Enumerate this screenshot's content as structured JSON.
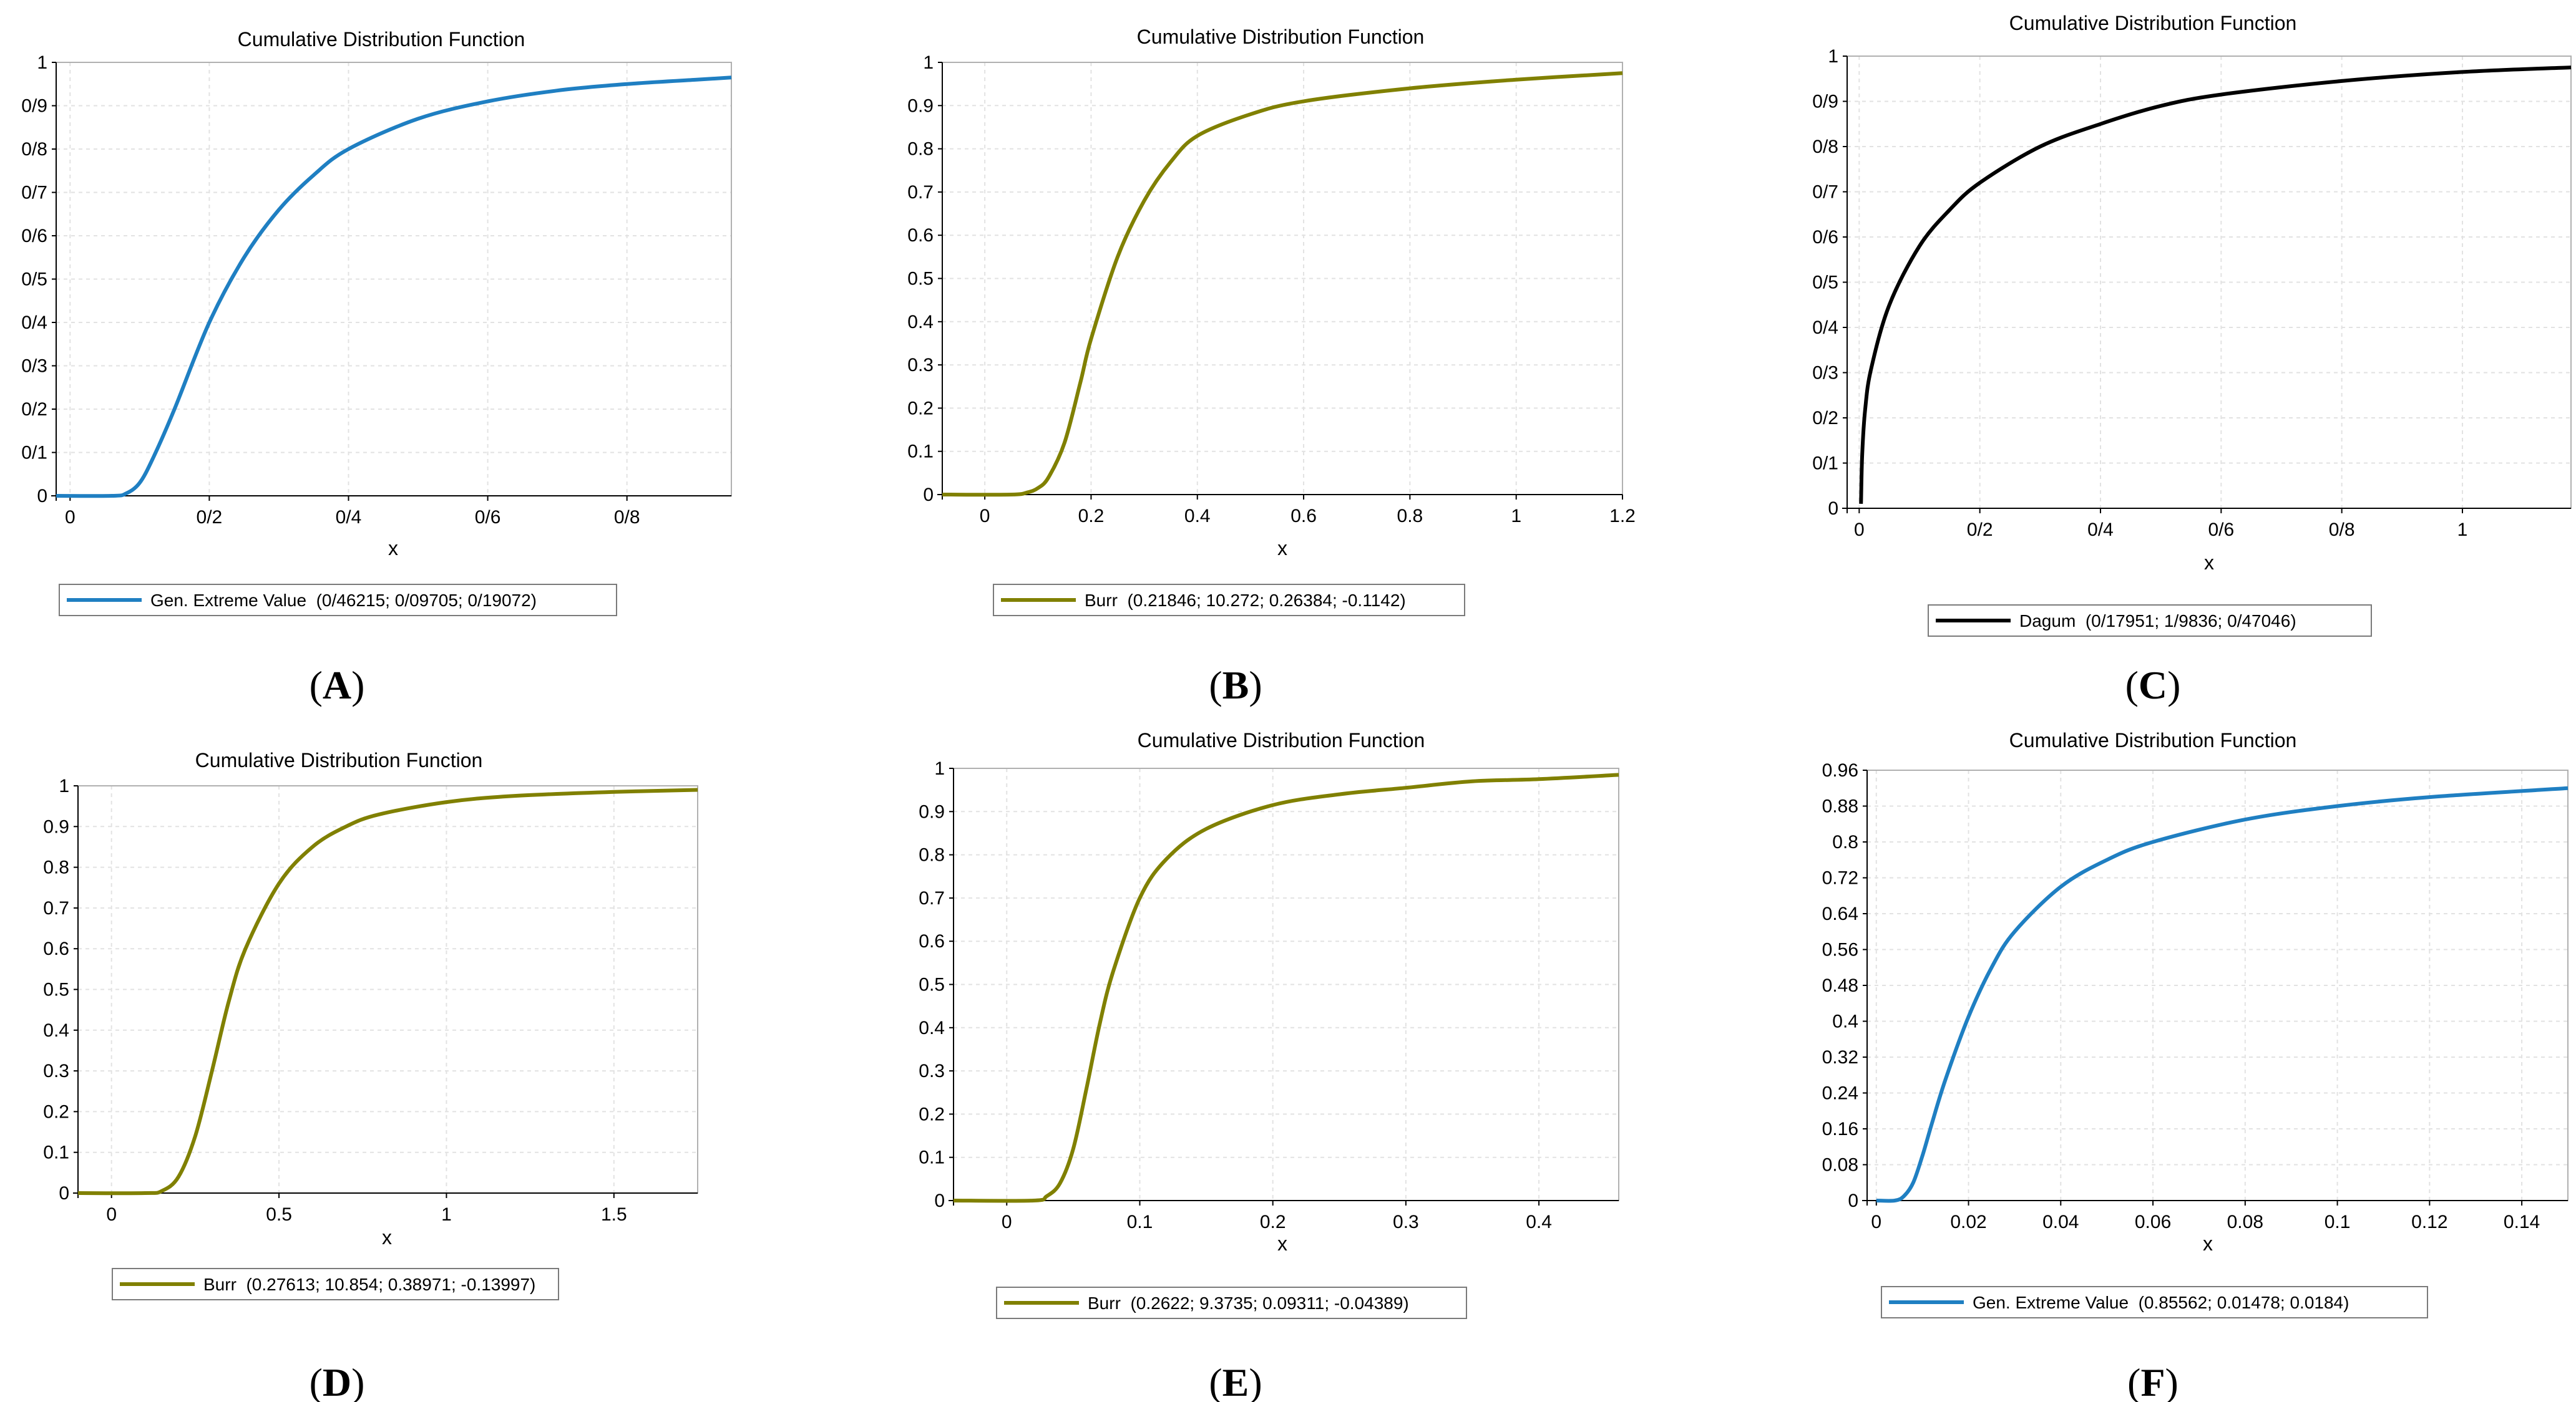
{
  "figure": {
    "panels": [
      {
        "letter": "A"
      },
      {
        "letter": "B"
      },
      {
        "letter": "C"
      },
      {
        "letter": "D"
      },
      {
        "letter": "E"
      },
      {
        "letter": "F"
      }
    ]
  },
  "chart_data": [
    {
      "type": "line",
      "title": "Cumulative Distribution Function",
      "xlabel": "x",
      "ylabel": "",
      "xlim": [
        -0.02,
        0.95
      ],
      "ylim": [
        0,
        1
      ],
      "xticks": [
        0,
        0.2,
        0.4,
        0.6,
        0.8
      ],
      "xtick_labels": [
        "0",
        "0/2",
        "0/4",
        "0/6",
        "0/8"
      ],
      "yticks": [
        0,
        0.1,
        0.2,
        0.3,
        0.4,
        0.5,
        0.6,
        0.7,
        0.8,
        0.9,
        1
      ],
      "ytick_labels": [
        "0",
        "0/1",
        "0/2",
        "0/3",
        "0/4",
        "0/5",
        "0/6",
        "0/7",
        "0/8",
        "0/9",
        "1"
      ],
      "color": "#1f7fc2",
      "legend": "Gen. Extreme Value  (0/46215; 0/09705; 0/19072)",
      "series": [
        {
          "name": "Gen. Extreme Value",
          "x": [
            -0.02,
            0.06,
            0.08,
            0.1,
            0.12,
            0.15,
            0.2,
            0.25,
            0.3,
            0.35,
            0.4,
            0.5,
            0.6,
            0.7,
            0.8,
            0.9,
            0.95
          ],
          "y": [
            0,
            0,
            0.005,
            0.03,
            0.09,
            0.2,
            0.4,
            0.55,
            0.66,
            0.74,
            0.8,
            0.87,
            0.91,
            0.935,
            0.95,
            0.96,
            0.965
          ]
        }
      ]
    },
    {
      "type": "line",
      "title": "Cumulative Distribution Function",
      "xlabel": "x",
      "ylabel": "",
      "xlim": [
        -0.08,
        1.2
      ],
      "ylim": [
        0,
        1
      ],
      "xticks": [
        0,
        0.2,
        0.4,
        0.6,
        0.8,
        1,
        1.2
      ],
      "xtick_labels": [
        "0",
        "0.2",
        "0.4",
        "0.6",
        "0.8",
        "1",
        "1.2"
      ],
      "yticks": [
        0,
        0.1,
        0.2,
        0.3,
        0.4,
        0.5,
        0.6,
        0.7,
        0.8,
        0.9,
        1
      ],
      "ytick_labels": [
        "0",
        "0.1",
        "0.2",
        "0.3",
        "0.4",
        "0.5",
        "0.6",
        "0.7",
        "0.8",
        "0.9",
        "1"
      ],
      "color": "#808000",
      "legend": "Burr  (0.21846; 10.272; 0.26384; -0.1142)",
      "series": [
        {
          "name": "Burr",
          "x": [
            -0.08,
            0.05,
            0.08,
            0.1,
            0.12,
            0.15,
            0.18,
            0.2,
            0.25,
            0.3,
            0.35,
            0.4,
            0.5,
            0.6,
            0.8,
            1.0,
            1.2
          ],
          "y": [
            0,
            0,
            0.005,
            0.015,
            0.04,
            0.12,
            0.26,
            0.36,
            0.55,
            0.68,
            0.77,
            0.83,
            0.88,
            0.91,
            0.94,
            0.96,
            0.975
          ]
        }
      ]
    },
    {
      "type": "line",
      "title": "Cumulative Distribution Function",
      "xlabel": "x",
      "ylabel": "",
      "xlim": [
        -0.02,
        1.18
      ],
      "ylim": [
        0,
        1
      ],
      "xticks": [
        0,
        0.2,
        0.4,
        0.6,
        0.8,
        1
      ],
      "xtick_labels": [
        "0",
        "0/2",
        "0/4",
        "0/6",
        "0/8",
        "1"
      ],
      "yticks": [
        0,
        0.1,
        0.2,
        0.3,
        0.4,
        0.5,
        0.6,
        0.7,
        0.8,
        0.9,
        1
      ],
      "ytick_labels": [
        "0",
        "0/1",
        "0/2",
        "0/3",
        "0/4",
        "0/5",
        "0/6",
        "0/7",
        "0/8",
        "0/9",
        "1"
      ],
      "color": "#000000",
      "legend": "Dagum  (0/17951; 1/9836; 0/47046)",
      "series": [
        {
          "name": "Dagum",
          "x": [
            0.003,
            0.005,
            0.01,
            0.02,
            0.05,
            0.1,
            0.15,
            0.2,
            0.3,
            0.4,
            0.5,
            0.6,
            0.8,
            1.0,
            1.18
          ],
          "y": [
            0.01,
            0.12,
            0.22,
            0.31,
            0.45,
            0.58,
            0.66,
            0.72,
            0.8,
            0.85,
            0.89,
            0.915,
            0.945,
            0.965,
            0.975
          ]
        }
      ]
    },
    {
      "type": "line",
      "title": "Cumulative Distribution Function",
      "xlabel": "x",
      "ylabel": "",
      "xlim": [
        -0.1,
        1.75
      ],
      "ylim": [
        0,
        1
      ],
      "xticks": [
        0,
        0.5,
        1,
        1.5
      ],
      "xtick_labels": [
        "0",
        "0.5",
        "1",
        "1.5"
      ],
      "yticks": [
        0,
        0.1,
        0.2,
        0.3,
        0.4,
        0.5,
        0.6,
        0.7,
        0.8,
        0.9,
        1
      ],
      "ytick_labels": [
        "0",
        "0.1",
        "0.2",
        "0.3",
        "0.4",
        "0.5",
        "0.6",
        "0.7",
        "0.8",
        "0.9",
        "1"
      ],
      "color": "#808000",
      "legend": "Burr  (0.27613; 10.854; 0.38971; -0.13997)",
      "series": [
        {
          "name": "Burr",
          "x": [
            -0.1,
            0.1,
            0.15,
            0.2,
            0.25,
            0.3,
            0.35,
            0.4,
            0.5,
            0.6,
            0.7,
            0.8,
            1.0,
            1.2,
            1.5,
            1.75
          ],
          "y": [
            0,
            0,
            0.005,
            0.04,
            0.14,
            0.3,
            0.47,
            0.6,
            0.76,
            0.85,
            0.9,
            0.93,
            0.96,
            0.975,
            0.985,
            0.99
          ]
        }
      ]
    },
    {
      "type": "line",
      "title": "Cumulative Distribution Function",
      "xlabel": "x",
      "ylabel": "",
      "xlim": [
        -0.04,
        0.46
      ],
      "ylim": [
        0,
        1
      ],
      "xticks": [
        0,
        0.1,
        0.2,
        0.3,
        0.4
      ],
      "xtick_labels": [
        "0",
        "0.1",
        "0.2",
        "0.3",
        "0.4"
      ],
      "yticks": [
        0,
        0.1,
        0.2,
        0.3,
        0.4,
        0.5,
        0.6,
        0.7,
        0.8,
        0.9,
        1
      ],
      "ytick_labels": [
        "0",
        "0.1",
        "0.2",
        "0.3",
        "0.4",
        "0.5",
        "0.6",
        "0.7",
        "0.8",
        "0.9",
        "1"
      ],
      "color": "#808000",
      "legend": "Burr  (0.2622; 9.3735; 0.09311; -0.04389)",
      "series": [
        {
          "name": "Burr",
          "x": [
            -0.04,
            0.02,
            0.03,
            0.04,
            0.05,
            0.06,
            0.07,
            0.08,
            0.1,
            0.12,
            0.15,
            0.2,
            0.25,
            0.3,
            0.35,
            0.4,
            0.46
          ],
          "y": [
            0,
            0,
            0.01,
            0.04,
            0.12,
            0.26,
            0.41,
            0.53,
            0.7,
            0.79,
            0.86,
            0.915,
            0.94,
            0.955,
            0.97,
            0.975,
            0.985
          ]
        }
      ]
    },
    {
      "type": "line",
      "title": "Cumulative Distribution Function",
      "xlabel": "x",
      "ylabel": "",
      "xlim": [
        -0.002,
        0.15
      ],
      "ylim": [
        0,
        0.96
      ],
      "xticks": [
        0,
        0.02,
        0.04,
        0.06,
        0.08,
        0.1,
        0.12,
        0.14
      ],
      "xtick_labels": [
        "0",
        "0.02",
        "0.04",
        "0.06",
        "0.08",
        "0.1",
        "0.12",
        "0.14"
      ],
      "yticks": [
        0,
        0.08,
        0.16,
        0.24,
        0.32,
        0.4,
        0.48,
        0.56,
        0.64,
        0.72,
        0.8,
        0.88,
        0.96
      ],
      "ytick_labels": [
        "0",
        "0.08",
        "0.16",
        "0.24",
        "0.32",
        "0.4",
        "0.48",
        "0.56",
        "0.64",
        "0.72",
        "0.8",
        "0.88",
        "0.96"
      ],
      "color": "#1f7fc2",
      "legend": "Gen. Extreme Value  (0.85562; 0.01478; 0.0184)",
      "series": [
        {
          "name": "Gen. Extreme Value",
          "x": [
            0,
            0.004,
            0.006,
            0.008,
            0.01,
            0.012,
            0.015,
            0.02,
            0.025,
            0.03,
            0.04,
            0.05,
            0.06,
            0.08,
            0.1,
            0.12,
            0.15
          ],
          "y": [
            0,
            0,
            0.01,
            0.04,
            0.1,
            0.17,
            0.27,
            0.41,
            0.52,
            0.6,
            0.7,
            0.76,
            0.8,
            0.85,
            0.88,
            0.9,
            0.92
          ]
        }
      ]
    }
  ]
}
